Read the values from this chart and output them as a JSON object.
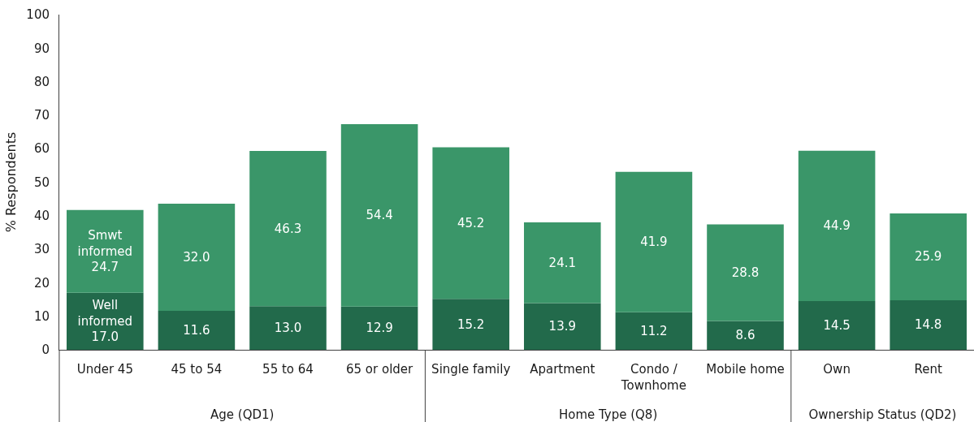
{
  "chart_data": [
    {
      "type": "bar",
      "stacked": true,
      "ylabel": "% Respondents",
      "xlabel": "Age (QD1)",
      "categories": [
        "Under 45",
        "45 to 54",
        "55 to 64",
        "65 or older"
      ],
      "series": [
        {
          "name": "Well informed",
          "color": "#226a4b",
          "values": [
            17.0,
            11.6,
            13.0,
            12.9
          ],
          "value_labels": [
            "17.0",
            "11.6",
            "13.0",
            "12.9"
          ]
        },
        {
          "name": "Smwt informed",
          "color": "#3a9669",
          "values": [
            24.7,
            32.0,
            46.3,
            54.4
          ],
          "value_labels": [
            "24.7",
            "32.0",
            "46.3",
            "54.4"
          ]
        }
      ],
      "ylim": [
        0,
        100
      ],
      "yticks": [
        0,
        10,
        20,
        30,
        40,
        50,
        60,
        70,
        80,
        90,
        100
      ]
    },
    {
      "type": "bar",
      "stacked": true,
      "xlabel": "Home Type (Q8)",
      "tick_labels": "x",
      "categories": [
        "Single family",
        "Apartment",
        "Condo / Townhome",
        "Mobile home"
      ],
      "series": [
        {
          "color": "#226a4b",
          "values": [
            15.2,
            13.9,
            11.2,
            8.6
          ],
          "value_labels": [
            "15.2",
            "13.9",
            "11.2",
            "8.6"
          ]
        },
        {
          "color": "#3a9669",
          "values": [
            45.2,
            24.1,
            41.9,
            28.8
          ],
          "value_labels": [
            "45.2",
            "24.1",
            "41.9",
            "28.8"
          ]
        }
      ],
      "ylim": [
        0,
        100
      ]
    },
    {
      "type": "bar",
      "stacked": true,
      "xlabel": "Ownership Status (QD2)",
      "tick_labels": "x",
      "categories": [
        "Own",
        "Rent"
      ],
      "series": [
        {
          "color": "#226a4b",
          "values": [
            14.5,
            14.8
          ],
          "value_labels": [
            "14.5",
            "14.8"
          ]
        },
        {
          "color": "#3a9669",
          "values": [
            44.9,
            25.9
          ],
          "value_labels": [
            "44.9",
            "25.9"
          ]
        }
      ],
      "ylim": [
        0,
        100
      ]
    }
  ]
}
